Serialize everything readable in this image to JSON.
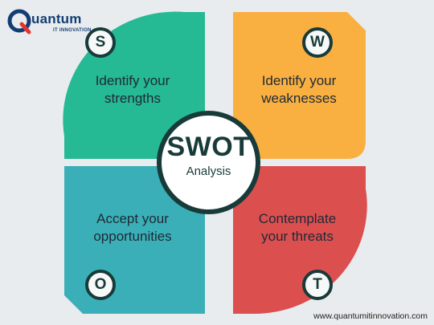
{
  "logo": {
    "brand": "uantum",
    "sub": "IT INNOVATION",
    "mark_letter": "Q"
  },
  "center": {
    "title": "SWOT",
    "subtitle": "Analysis"
  },
  "quadrants": [
    {
      "letter": "S",
      "line1": "Identify your",
      "line2": "strengths",
      "color": "#25b994"
    },
    {
      "letter": "W",
      "line1": "Identify your",
      "line2": "weaknesses",
      "color": "#f9b041"
    },
    {
      "letter": "O",
      "line1": "Accept your",
      "line2": "opportunities",
      "color": "#3aafb7"
    },
    {
      "letter": "T",
      "line1": "Contemplate",
      "line2": "your threats",
      "color": "#dc4f4f"
    }
  ],
  "footer": {
    "url": "www.quantumitinnovation.com"
  },
  "colors": {
    "background": "#e9ecee",
    "dark": "#183b3a",
    "brand": "#123e73"
  }
}
